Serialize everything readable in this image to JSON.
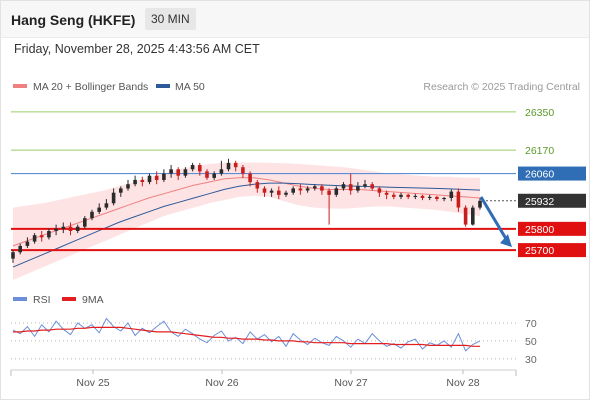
{
  "header": {
    "symbol": "Hang Seng (HKFE)",
    "timeframe": "30 MIN"
  },
  "timestamp": "Friday, November 28, 2025 4:43:56 AM CET",
  "legend": {
    "items": [
      {
        "label": "MA 20 + Bollinger Bands",
        "color": "#f08080"
      },
      {
        "label": "MA 50",
        "color": "#2e5a9a"
      }
    ],
    "credit": "Research © 2025 Trading Central"
  },
  "rsi_legend": [
    {
      "label": "RSI",
      "color": "#6a8fd8"
    },
    {
      "label": "9MA",
      "color": "#e41e1e"
    }
  ],
  "colors": {
    "up": "#2b2b2b",
    "down": "#c81e1e",
    "resistance_green": "#9acd6a",
    "level_blue": "#5b8ed6",
    "level_red": "#e01010",
    "last_price": "#333333",
    "arrow": "#2f6db5",
    "bands": "#fde3e3"
  },
  "chart_data": [
    {
      "type": "candlestick",
      "title": "Hang Seng (HKFE)",
      "ylim": [
        25550,
        26420
      ],
      "x_tick_labels": [
        "Nov 25",
        "Nov 26",
        "Nov 27",
        "Nov 28"
      ],
      "levels": [
        {
          "label": "26350",
          "value": 26350,
          "kind": "resistance",
          "color": "#9acd6a"
        },
        {
          "label": "26170",
          "value": 26170,
          "kind": "resistance",
          "color": "#9acd6a"
        },
        {
          "label": "26060",
          "value": 26060,
          "kind": "pivot",
          "color": "#5b8ed6"
        },
        {
          "label": "25932",
          "value": 25932,
          "kind": "last_price",
          "color": "#333333"
        },
        {
          "label": "25800",
          "value": 25800,
          "kind": "support",
          "color": "#e01010"
        },
        {
          "label": "25700",
          "value": 25700,
          "kind": "support",
          "color": "#e01010"
        }
      ],
      "projection": {
        "from": 25950,
        "to": 25700,
        "direction": "down"
      },
      "series": [
        {
          "name": "MA 20 + Bollinger Bands"
        },
        {
          "name": "MA 50"
        }
      ],
      "candles": [
        [
          25660,
          25690,
          25640,
          25700
        ],
        [
          25690,
          25720,
          25680,
          25730
        ],
        [
          25720,
          25740,
          25710,
          25760
        ],
        [
          25740,
          25770,
          25730,
          25780
        ],
        [
          25770,
          25760,
          25740,
          25790
        ],
        [
          25760,
          25790,
          25750,
          25800
        ],
        [
          25790,
          25800,
          25770,
          25820
        ],
        [
          25800,
          25810,
          25780,
          25830
        ],
        [
          25810,
          25790,
          25770,
          25830
        ],
        [
          25790,
          25810,
          25780,
          25820
        ],
        [
          25810,
          25850,
          25800,
          25860
        ],
        [
          25850,
          25880,
          25840,
          25890
        ],
        [
          25880,
          25900,
          25870,
          25920
        ],
        [
          25900,
          25920,
          25890,
          25940
        ],
        [
          25920,
          25970,
          25910,
          25990
        ],
        [
          25970,
          25990,
          25950,
          26000
        ],
        [
          25990,
          26010,
          25980,
          26030
        ],
        [
          26010,
          26030,
          26000,
          26050
        ],
        [
          26030,
          26020,
          26000,
          26045
        ],
        [
          26020,
          26050,
          26010,
          26060
        ],
        [
          26050,
          26030,
          26010,
          26070
        ],
        [
          26030,
          26060,
          26020,
          26080
        ],
        [
          26060,
          26080,
          26040,
          26100
        ],
        [
          26080,
          26050,
          26030,
          26090
        ],
        [
          26050,
          26080,
          26040,
          26090
        ],
        [
          26080,
          26100,
          26070,
          26110
        ],
        [
          26100,
          26070,
          26050,
          26110
        ],
        [
          26070,
          26040,
          26030,
          26080
        ],
        [
          26040,
          26060,
          26030,
          26070
        ],
        [
          26060,
          26080,
          26050,
          26120
        ],
        [
          26080,
          26110,
          26070,
          26130
        ],
        [
          26110,
          26090,
          26070,
          26120
        ],
        [
          26090,
          26060,
          26040,
          26100
        ],
        [
          26060,
          26020,
          26000,
          26070
        ],
        [
          26020,
          25990,
          25970,
          26030
        ],
        [
          25990,
          25970,
          25950,
          26000
        ],
        [
          25970,
          25980,
          25950,
          25990
        ],
        [
          25980,
          25960,
          25940,
          26000
        ],
        [
          25960,
          25970,
          25950,
          25980
        ],
        [
          25970,
          25990,
          25960,
          26000
        ],
        [
          25990,
          25980,
          25960,
          26010
        ],
        [
          25980,
          25990,
          25970,
          26000
        ],
        [
          25990,
          26000,
          25980,
          26010
        ],
        [
          26000,
          25980,
          25960,
          26010
        ],
        [
          25980,
          25960,
          25820,
          25990
        ],
        [
          25960,
          25990,
          25950,
          26000
        ],
        [
          25990,
          26010,
          25980,
          26020
        ],
        [
          26010,
          25980,
          25960,
          26060
        ],
        [
          25980,
          26000,
          25970,
          26020
        ],
        [
          26000,
          26010,
          25990,
          26030
        ],
        [
          26010,
          25990,
          25980,
          26020
        ],
        [
          25990,
          25970,
          25950,
          26000
        ],
        [
          25970,
          25960,
          25940,
          25980
        ],
        [
          25960,
          25950,
          25940,
          25970
        ],
        [
          25950,
          25960,
          25940,
          25970
        ],
        [
          25960,
          25950,
          25940,
          25965
        ],
        [
          25950,
          25955,
          25940,
          25965
        ],
        [
          25955,
          25945,
          25935,
          25960
        ],
        [
          25945,
          25950,
          25935,
          25960
        ],
        [
          25950,
          25940,
          25930,
          25955
        ],
        [
          25940,
          25945,
          25930,
          25950
        ],
        [
          25945,
          25975,
          25930,
          25985
        ],
        [
          25975,
          25900,
          25880,
          25990
        ],
        [
          25900,
          25820,
          25810,
          25910
        ],
        [
          25820,
          25900,
          25815,
          25910
        ],
        [
          25900,
          25932,
          25890,
          25945
        ]
      ],
      "bb_upper": [
        25900,
        25910,
        25920,
        25935,
        25950,
        25965,
        25980,
        26000,
        26020,
        26040,
        26060,
        26080,
        26095,
        26105,
        26110,
        26112,
        26112,
        26110,
        26108,
        26105,
        26100,
        26095,
        26090,
        26080,
        26070,
        26060,
        26055,
        26050,
        26045,
        26045,
        26040,
        26040
      ],
      "bb_mid": [
        25720,
        25745,
        25770,
        25795,
        25820,
        25845,
        25870,
        25895,
        25920,
        25945,
        25965,
        25985,
        26005,
        26020,
        26035,
        26040,
        26040,
        26030,
        26015,
        26000,
        25990,
        25985,
        25985,
        25985,
        25980,
        25975,
        25970,
        25965,
        25960,
        25955,
        25950,
        25945
      ],
      "bb_lower": [
        25560,
        25590,
        25620,
        25650,
        25680,
        25710,
        25740,
        25770,
        25800,
        25830,
        25860,
        25880,
        25900,
        25920,
        25935,
        25950,
        25955,
        25950,
        25930,
        25910,
        25900,
        25895,
        25895,
        25900,
        25905,
        25905,
        25900,
        25895,
        25890,
        25880,
        25870,
        25860
      ],
      "ma50": [
        25620,
        25650,
        25680,
        25710,
        25740,
        25770,
        25800,
        25830,
        25855,
        25880,
        25905,
        25925,
        25945,
        25965,
        25985,
        26000,
        26010,
        26015,
        26015,
        26012,
        26008,
        26005,
        26002,
        26000,
        25998,
        25996,
        25994,
        25992,
        25990,
        25988,
        25985,
        25982
      ]
    },
    {
      "type": "line",
      "title": "",
      "ylim": [
        22,
        80
      ],
      "y_ticks": [
        70,
        50,
        30
      ],
      "x_tick_labels": [
        "Nov 25",
        "Nov 26",
        "Nov 27",
        "Nov 28"
      ],
      "series": [
        {
          "name": "RSI",
          "color": "#6a8fd8",
          "values": [
            62,
            58,
            66,
            55,
            68,
            60,
            72,
            63,
            57,
            70,
            64,
            68,
            59,
            75,
            66,
            61,
            70,
            56,
            64,
            59,
            66,
            72,
            60,
            55,
            63,
            58,
            52,
            48,
            56,
            61,
            50,
            54,
            47,
            60,
            52,
            57,
            49,
            55,
            44,
            58,
            51,
            46,
            53,
            48,
            45,
            55,
            50,
            43,
            52,
            47,
            58,
            50,
            44,
            47,
            42,
            49,
            52,
            41,
            48,
            45,
            50,
            43,
            58,
            39,
            46,
            50
          ]
        },
        {
          "name": "9MA",
          "color": "#e41e1e",
          "values": [
            60,
            60,
            61,
            61,
            62,
            62,
            63,
            63,
            63,
            64,
            64,
            65,
            65,
            65,
            65,
            65,
            64,
            63,
            62,
            61,
            60,
            60,
            60,
            59,
            58,
            57,
            56,
            55,
            54,
            54,
            53,
            53,
            52,
            52,
            52,
            51,
            51,
            50,
            50,
            50,
            49,
            49,
            48,
            48,
            48,
            48,
            48,
            47,
            47,
            47,
            47,
            47,
            47,
            46,
            46,
            46,
            46,
            46,
            45,
            45,
            45,
            45,
            45,
            45,
            44,
            44
          ]
        }
      ]
    }
  ]
}
